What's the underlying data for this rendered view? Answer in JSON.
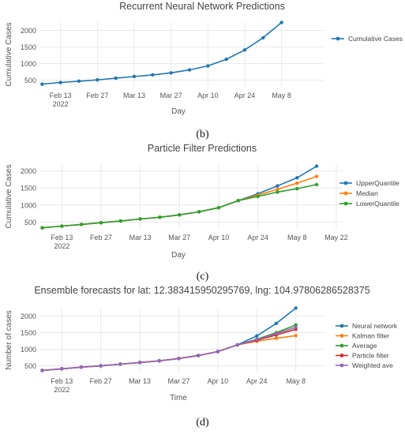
{
  "captions": [
    "(b)",
    "(c)",
    "(d)"
  ],
  "chart_data": [
    {
      "type": "line",
      "title": "Recurrent Neural Network Predictions",
      "xlabel": "Day",
      "ylabel": "Cumulative Cases",
      "xlim": [
        "2022-02-05",
        "2022-05-24"
      ],
      "ylim": [
        300,
        2250
      ],
      "yticks": [
        500,
        1000,
        1500,
        2000
      ],
      "yticklabels": [
        "500",
        "1000",
        "1500",
        "2000"
      ],
      "xticks": [
        "2022-02-13",
        "2022-02-27",
        "2022-03-13",
        "2022-03-27",
        "2022-04-10",
        "2022-04-24",
        "2022-05-08"
      ],
      "xticklabels": [
        "Feb 13",
        "Feb 27",
        "Mar 13",
        "Mar 27",
        "Apr 10",
        "Apr 24",
        "May 8"
      ],
      "year_label": "2022",
      "legend": "right",
      "grid": true,
      "x": [
        "2022-02-06",
        "2022-02-13",
        "2022-02-20",
        "2022-02-27",
        "2022-03-06",
        "2022-03-13",
        "2022-03-20",
        "2022-03-27",
        "2022-04-03",
        "2022-04-10",
        "2022-04-17",
        "2022-04-24",
        "2022-05-01",
        "2022-05-08"
      ],
      "series": [
        {
          "name": "Cumulative Cases",
          "color": "#1f77b4",
          "values": [
            380,
            430,
            470,
            510,
            560,
            610,
            660,
            720,
            810,
            930,
            1130,
            1410,
            1780,
            2240
          ]
        }
      ]
    },
    {
      "type": "line",
      "title": "Particle Filter Predictions",
      "xlabel": "Day",
      "ylabel": "Cumulative Cases",
      "xlim": [
        "2022-02-05",
        "2022-05-24"
      ],
      "ylim": [
        300,
        2200
      ],
      "yticks": [
        500,
        1000,
        1500,
        2000
      ],
      "yticklabels": [
        "500",
        "1000",
        "1500",
        "2000"
      ],
      "xticks": [
        "2022-02-13",
        "2022-02-27",
        "2022-03-13",
        "2022-03-27",
        "2022-04-10",
        "2022-04-24",
        "2022-05-08",
        "2022-05-22"
      ],
      "xticklabels": [
        "Feb 13",
        "Feb 27",
        "Mar 13",
        "Mar 27",
        "Apr 10",
        "Apr 24",
        "May 8",
        "May 22"
      ],
      "year_label": "2022",
      "legend": "right",
      "grid": true,
      "x": [
        "2022-02-06",
        "2022-02-13",
        "2022-02-20",
        "2022-02-27",
        "2022-03-06",
        "2022-03-13",
        "2022-03-20",
        "2022-03-27",
        "2022-04-03",
        "2022-04-10",
        "2022-04-17",
        "2022-04-24",
        "2022-05-01",
        "2022-05-08",
        "2022-05-15"
      ],
      "series": [
        {
          "name": "UpperQuantile",
          "color": "#1f77b4",
          "values": [
            330,
            380,
            430,
            480,
            530,
            590,
            640,
            710,
            800,
            920,
            1130,
            1330,
            1560,
            1800,
            2140
          ]
        },
        {
          "name": "Median",
          "color": "#ff7f0e",
          "values": [
            330,
            380,
            430,
            480,
            530,
            590,
            640,
            710,
            800,
            920,
            1130,
            1290,
            1460,
            1640,
            1840
          ]
        },
        {
          "name": "LowerQuantile",
          "color": "#2ca02c",
          "values": [
            330,
            380,
            430,
            480,
            530,
            590,
            640,
            710,
            800,
            920,
            1130,
            1250,
            1380,
            1480,
            1600
          ]
        }
      ]
    },
    {
      "type": "line",
      "title": "Ensemble forecasts for lat: 12.383415950295769, lng: 104.97806286528375",
      "xlabel": "Time",
      "ylabel": "Number of cases",
      "xlim": [
        "2022-02-05",
        "2022-05-18"
      ],
      "ylim": [
        300,
        2250
      ],
      "yticks": [
        500,
        1000,
        1500,
        2000
      ],
      "yticklabels": [
        "500",
        "1000",
        "1500",
        "2000"
      ],
      "xticks": [
        "2022-02-13",
        "2022-02-27",
        "2022-03-13",
        "2022-03-27",
        "2022-04-10",
        "2022-04-24",
        "2022-05-08"
      ],
      "xticklabels": [
        "Feb 13",
        "Feb 27",
        "Mar 13",
        "Mar 27",
        "Apr 10",
        "Apr 24",
        "May 8"
      ],
      "year_label": "2022",
      "legend": "right",
      "grid": true,
      "x": [
        "2022-02-06",
        "2022-02-13",
        "2022-02-20",
        "2022-02-27",
        "2022-03-06",
        "2022-03-13",
        "2022-03-20",
        "2022-03-27",
        "2022-04-03",
        "2022-04-10",
        "2022-04-17",
        "2022-04-24",
        "2022-05-01",
        "2022-05-08"
      ],
      "series": [
        {
          "name": "Neural network",
          "color": "#1f77b4",
          "values": [
            360,
            410,
            460,
            500,
            550,
            600,
            650,
            720,
            810,
            930,
            1130,
            1400,
            1780,
            2240
          ]
        },
        {
          "name": "Kalman filter",
          "color": "#ff7f0e",
          "values": [
            360,
            410,
            460,
            500,
            550,
            600,
            650,
            720,
            810,
            930,
            1130,
            1240,
            1330,
            1410
          ]
        },
        {
          "name": "Average",
          "color": "#2ca02c",
          "values": [
            360,
            410,
            460,
            500,
            550,
            600,
            650,
            720,
            810,
            930,
            1130,
            1300,
            1500,
            1730
          ]
        },
        {
          "name": "Particle filter",
          "color": "#d62728",
          "values": [
            360,
            410,
            460,
            500,
            550,
            600,
            650,
            720,
            810,
            930,
            1130,
            1270,
            1430,
            1600
          ]
        },
        {
          "name": "Weighted ave",
          "color": "#9467bd",
          "values": [
            360,
            410,
            460,
            500,
            550,
            600,
            650,
            720,
            810,
            930,
            1130,
            1290,
            1470,
            1660
          ]
        }
      ]
    }
  ]
}
